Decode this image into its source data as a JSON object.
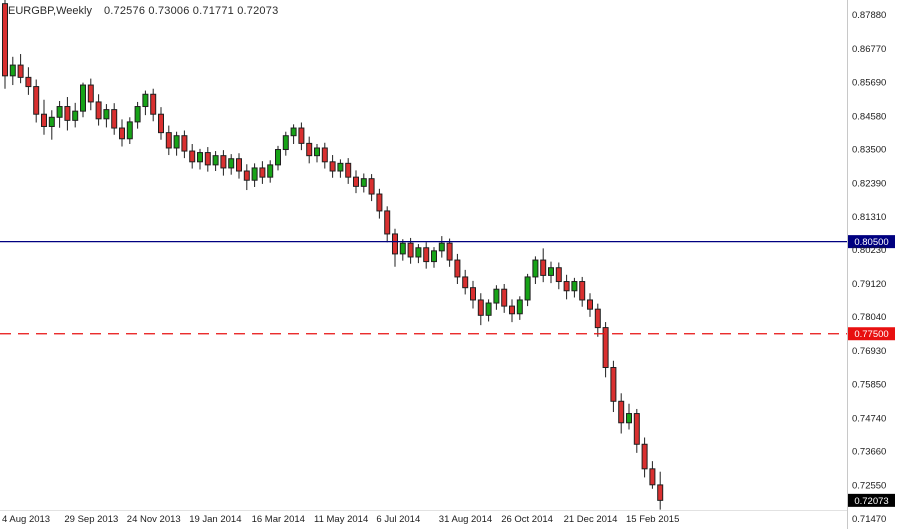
{
  "header": {
    "symbol_period": "EURGBP,Weekly",
    "ohlc_text": "0.72576 0.73006 0.71771 0.72073"
  },
  "chart_data": {
    "type": "candlestick",
    "symbol": "EURGBP",
    "timeframe": "Weekly",
    "title": "EURGBP,Weekly",
    "current_bar": {
      "open": 0.72576,
      "high": 0.73006,
      "low": 0.71771,
      "close": 0.72073
    },
    "ylim": [
      0.7114,
      0.8837
    ],
    "y_axis": {
      "side": "right",
      "ticks": [
        "0.87880",
        "0.86770",
        "0.85690",
        "0.84580",
        "0.83500",
        "0.82390",
        "0.81310",
        "0.80230",
        "0.79120",
        "0.78040",
        "0.76930",
        "0.75850",
        "0.74740",
        "0.73660",
        "0.72550",
        "0.71470"
      ]
    },
    "x_axis": {
      "labels": [
        "4 Aug 2013",
        "29 Sep 2013",
        "24 Nov 2013",
        "19 Jan 2014",
        "16 Mar 2014",
        "11 May 2014",
        "6 Jul 2014",
        "31 Aug 2014",
        "26 Oct 2014",
        "21 Dec 2014",
        "15 Feb 2015"
      ],
      "indices": [
        0,
        8,
        16,
        24,
        32,
        40,
        48,
        56,
        64,
        72,
        80
      ]
    },
    "hlines": [
      {
        "name": "resistance-line-blue",
        "value": 0.805,
        "label": "0.80500",
        "color": "#000080",
        "style": "solid"
      },
      {
        "name": "support-line-red-dashed",
        "value": 0.775,
        "label": "0.77500",
        "color": "#E81010",
        "style": "dashed"
      }
    ],
    "price_tag": {
      "value": 0.72073,
      "label": "0.72073",
      "color": "#000000"
    },
    "colors": {
      "up": "#17A317",
      "down": "#D93030",
      "border": "#1f1f1f",
      "wick": "#1f1f1f",
      "background": "#ffffff"
    },
    "candles": [
      [
        0.8825,
        0.884,
        0.8548,
        0.859
      ],
      [
        0.859,
        0.8652,
        0.856,
        0.8625
      ],
      [
        0.8625,
        0.8661,
        0.8566,
        0.8585
      ],
      [
        0.8585,
        0.8618,
        0.8528,
        0.8555
      ],
      [
        0.8555,
        0.8578,
        0.8438,
        0.8465
      ],
      [
        0.8465,
        0.8512,
        0.8398,
        0.8425
      ],
      [
        0.8425,
        0.8478,
        0.8382,
        0.8455
      ],
      [
        0.8455,
        0.8508,
        0.8421,
        0.849
      ],
      [
        0.849,
        0.8521,
        0.8412,
        0.8445
      ],
      [
        0.8445,
        0.8502,
        0.8422,
        0.8475
      ],
      [
        0.8475,
        0.8568,
        0.8455,
        0.856
      ],
      [
        0.856,
        0.8581,
        0.8478,
        0.8505
      ],
      [
        0.8505,
        0.853,
        0.8428,
        0.845
      ],
      [
        0.845,
        0.8498,
        0.8422,
        0.848
      ],
      [
        0.848,
        0.8501,
        0.8398,
        0.842
      ],
      [
        0.842,
        0.8448,
        0.836,
        0.8385
      ],
      [
        0.8385,
        0.8455,
        0.8368,
        0.844
      ],
      [
        0.844,
        0.8505,
        0.8418,
        0.849
      ],
      [
        0.849,
        0.8542,
        0.8462,
        0.853
      ],
      [
        0.853,
        0.8548,
        0.8442,
        0.8465
      ],
      [
        0.8465,
        0.8488,
        0.8382,
        0.8405
      ],
      [
        0.8405,
        0.8428,
        0.8332,
        0.8355
      ],
      [
        0.8355,
        0.8408,
        0.833,
        0.8395
      ],
      [
        0.8395,
        0.8412,
        0.8322,
        0.8345
      ],
      [
        0.8345,
        0.8368,
        0.8288,
        0.831
      ],
      [
        0.831,
        0.8352,
        0.8285,
        0.834
      ],
      [
        0.834,
        0.8358,
        0.8278,
        0.83
      ],
      [
        0.83,
        0.8345,
        0.828,
        0.833
      ],
      [
        0.833,
        0.8348,
        0.8265,
        0.829
      ],
      [
        0.829,
        0.8335,
        0.8268,
        0.832
      ],
      [
        0.832,
        0.8338,
        0.8255,
        0.828
      ],
      [
        0.828,
        0.8302,
        0.8218,
        0.825
      ],
      [
        0.825,
        0.8305,
        0.8228,
        0.829
      ],
      [
        0.829,
        0.8312,
        0.8238,
        0.826
      ],
      [
        0.826,
        0.8315,
        0.8242,
        0.83
      ],
      [
        0.83,
        0.8362,
        0.8282,
        0.835
      ],
      [
        0.835,
        0.8408,
        0.833,
        0.8395
      ],
      [
        0.8395,
        0.8432,
        0.8368,
        0.842
      ],
      [
        0.842,
        0.8438,
        0.8348,
        0.837
      ],
      [
        0.837,
        0.8392,
        0.8305,
        0.833
      ],
      [
        0.833,
        0.8368,
        0.8308,
        0.8355
      ],
      [
        0.8355,
        0.8372,
        0.8288,
        0.831
      ],
      [
        0.831,
        0.8332,
        0.8258,
        0.828
      ],
      [
        0.828,
        0.8318,
        0.8258,
        0.8305
      ],
      [
        0.8305,
        0.8322,
        0.8238,
        0.826
      ],
      [
        0.826,
        0.8282,
        0.8208,
        0.823
      ],
      [
        0.823,
        0.8272,
        0.821,
        0.8255
      ],
      [
        0.8255,
        0.827,
        0.8182,
        0.8205
      ],
      [
        0.8205,
        0.8222,
        0.8125,
        0.815
      ],
      [
        0.815,
        0.8165,
        0.8048,
        0.8075
      ],
      [
        0.8075,
        0.8092,
        0.7968,
        0.801
      ],
      [
        0.801,
        0.8058,
        0.7988,
        0.8045
      ],
      [
        0.8045,
        0.8062,
        0.7978,
        0.8
      ],
      [
        0.8,
        0.8042,
        0.798,
        0.803
      ],
      [
        0.803,
        0.8048,
        0.7962,
        0.7985
      ],
      [
        0.7985,
        0.8032,
        0.7965,
        0.802
      ],
      [
        0.802,
        0.8068,
        0.7998,
        0.8045
      ],
      [
        0.8045,
        0.806,
        0.7968,
        0.799
      ],
      [
        0.799,
        0.801,
        0.7912,
        0.7935
      ],
      [
        0.7935,
        0.7958,
        0.7878,
        0.79
      ],
      [
        0.79,
        0.7922,
        0.7832,
        0.786
      ],
      [
        0.786,
        0.7882,
        0.7778,
        0.781
      ],
      [
        0.781,
        0.7862,
        0.779,
        0.785
      ],
      [
        0.785,
        0.7908,
        0.7828,
        0.7895
      ],
      [
        0.7895,
        0.7912,
        0.7818,
        0.784
      ],
      [
        0.784,
        0.7862,
        0.7788,
        0.7815
      ],
      [
        0.7815,
        0.7872,
        0.7795,
        0.786
      ],
      [
        0.786,
        0.7945,
        0.784,
        0.7935
      ],
      [
        0.7935,
        0.8002,
        0.7912,
        0.799
      ],
      [
        0.799,
        0.8028,
        0.7918,
        0.794
      ],
      [
        0.794,
        0.7985,
        0.7915,
        0.7965
      ],
      [
        0.7965,
        0.7982,
        0.7895,
        0.792
      ],
      [
        0.792,
        0.7942,
        0.7862,
        0.789
      ],
      [
        0.789,
        0.7932,
        0.7868,
        0.792
      ],
      [
        0.792,
        0.7935,
        0.7838,
        0.786
      ],
      [
        0.786,
        0.7882,
        0.7805,
        0.783
      ],
      [
        0.783,
        0.7848,
        0.774,
        0.777
      ],
      [
        0.777,
        0.7788,
        0.7608,
        0.764
      ],
      [
        0.764,
        0.7662,
        0.7495,
        0.753
      ],
      [
        0.753,
        0.7556,
        0.7425,
        0.746
      ],
      [
        0.746,
        0.7522,
        0.7438,
        0.749
      ],
      [
        0.749,
        0.7505,
        0.7362,
        0.739
      ],
      [
        0.739,
        0.7412,
        0.7282,
        0.731
      ],
      [
        0.731,
        0.7335,
        0.7245,
        0.7258
      ],
      [
        0.72576,
        0.73006,
        0.71771,
        0.72073
      ]
    ]
  }
}
